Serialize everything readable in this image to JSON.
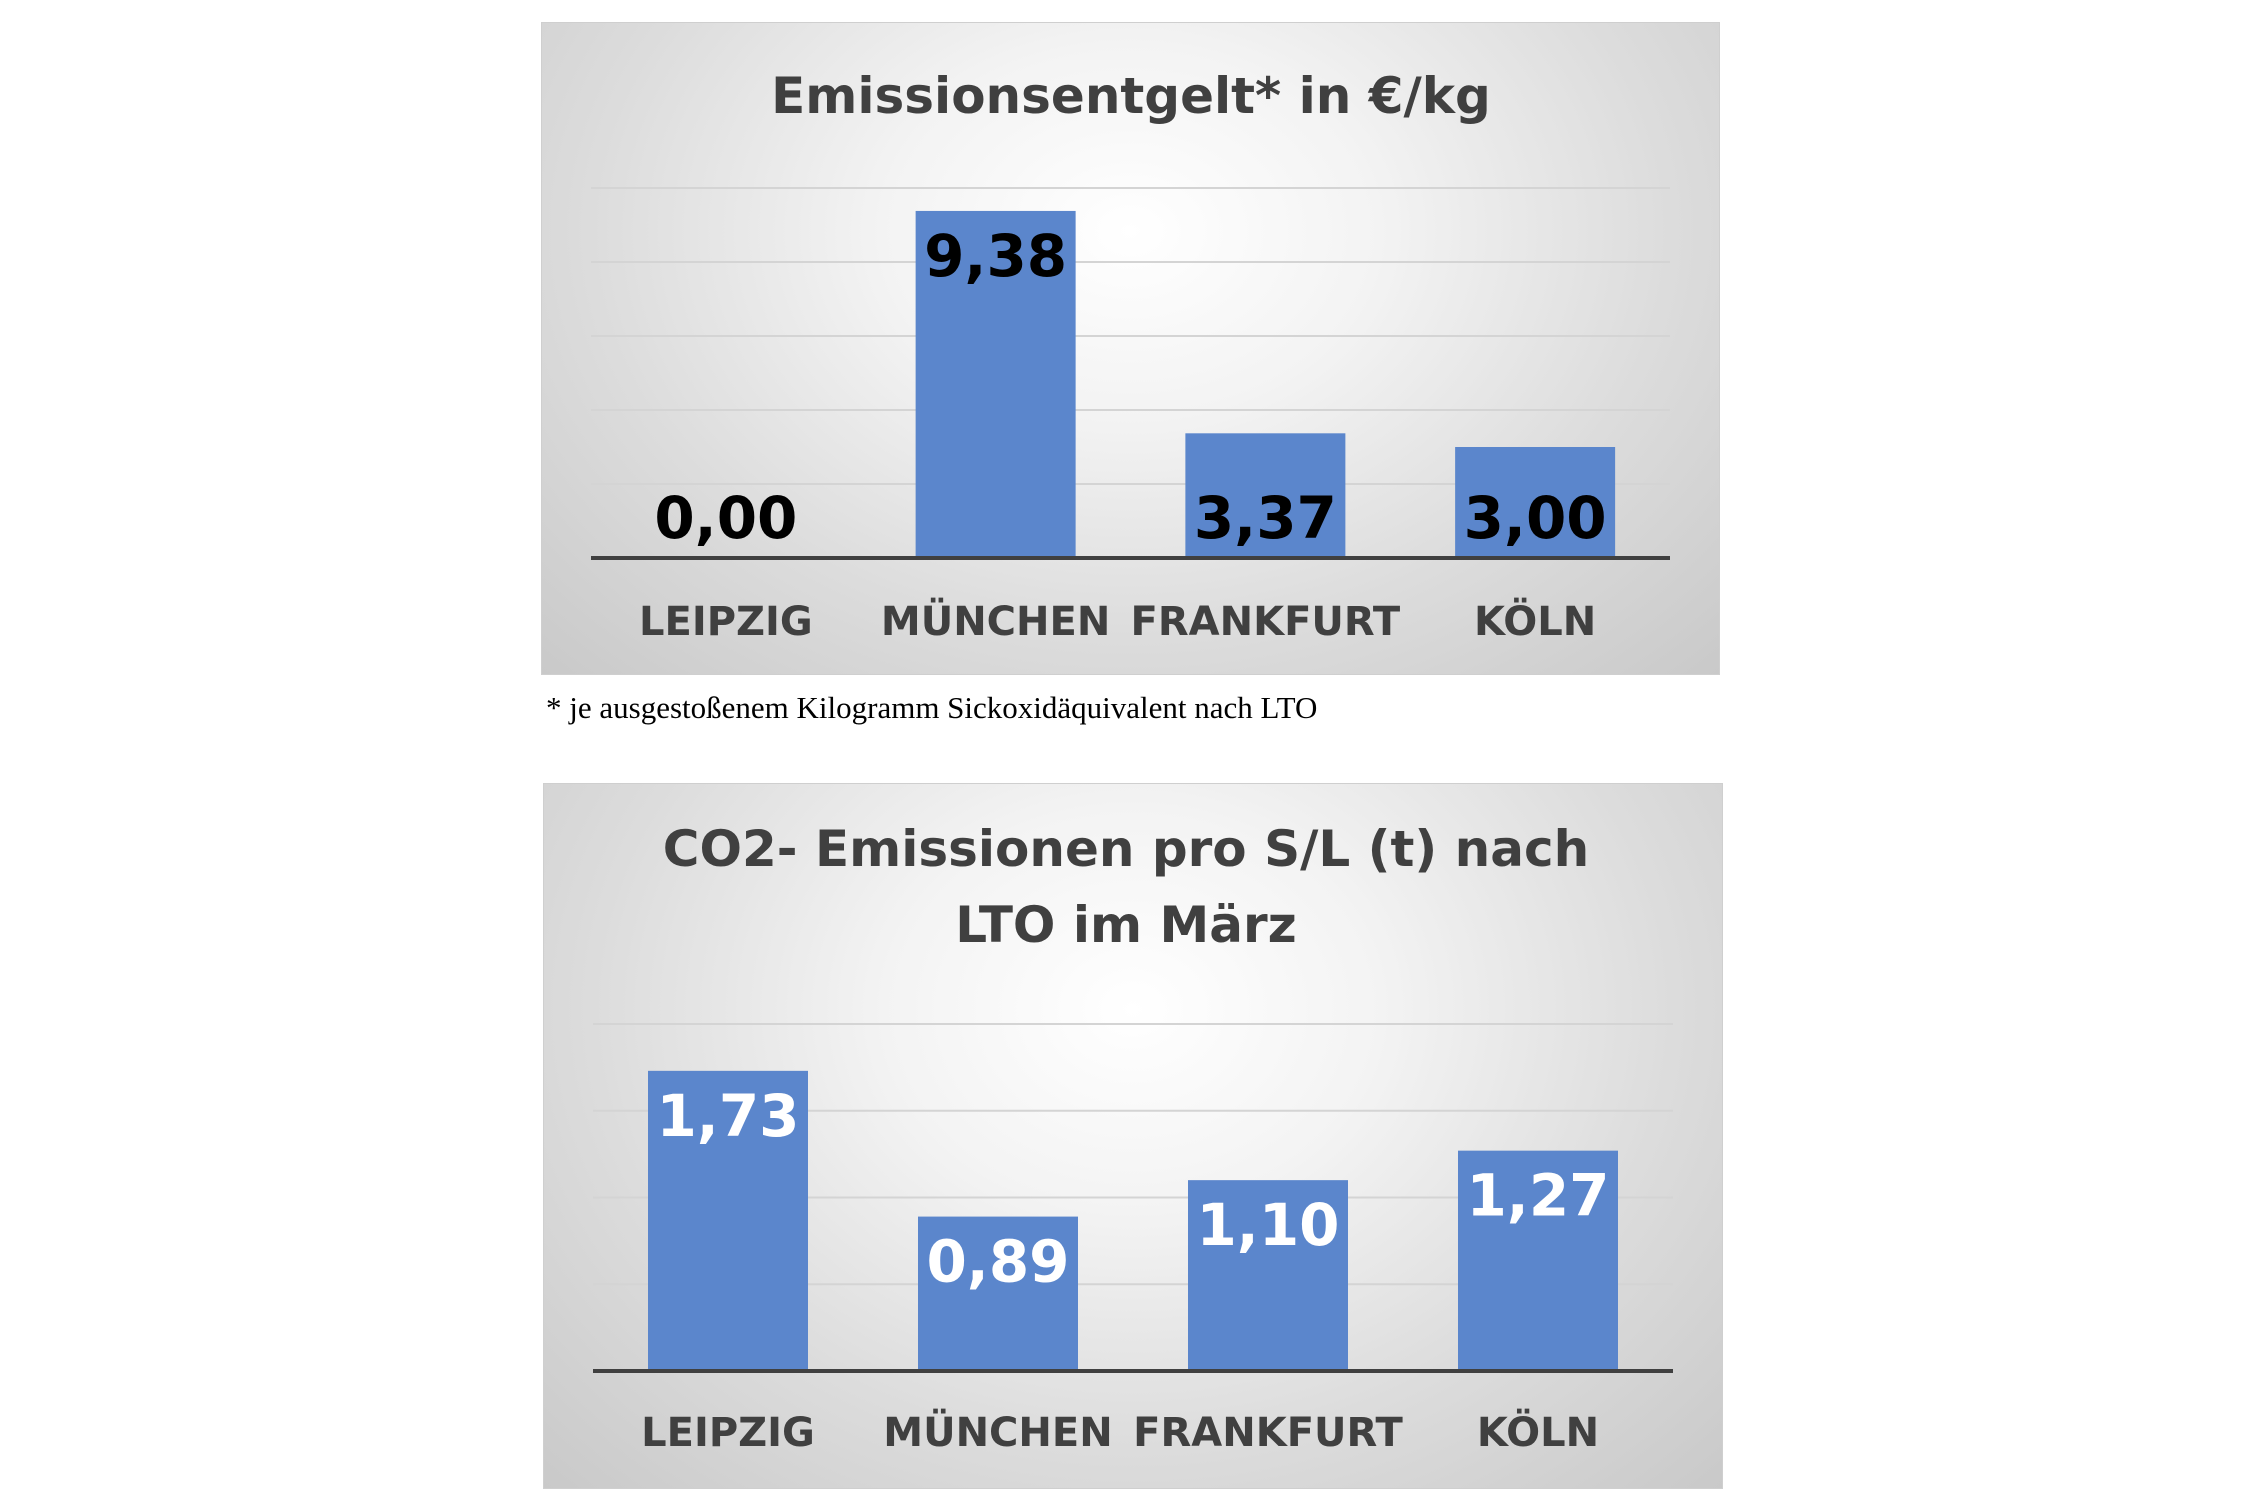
{
  "chart_data": [
    {
      "type": "bar",
      "title": "Emissionsentgelt* in €/kg",
      "categories": [
        "LEIPZIG",
        "MÜNCHEN",
        "FRANKFURT",
        "KÖLN"
      ],
      "values": [
        0.0,
        9.38,
        3.37,
        3.0
      ],
      "data_labels": [
        "0,00",
        "9,38",
        "3,37",
        "3,00"
      ],
      "ylim": [
        0,
        10
      ],
      "grid": true,
      "bar_color": "#5b86cc",
      "data_label_color": "#000000",
      "footnote": "* je ausgestoßenem Kilogramm Sickoxidäquivalent nach LTO"
    },
    {
      "type": "bar",
      "title": "CO2- Emissionen pro S/L (t) nach LTO im März",
      "title_lines": [
        "CO2- Emissionen pro S/L (t) nach",
        "LTO im März"
      ],
      "categories": [
        "LEIPZIG",
        "MÜNCHEN",
        "FRANKFURT",
        "KÖLN"
      ],
      "values": [
        1.73,
        0.89,
        1.1,
        1.27
      ],
      "data_labels": [
        "1,73",
        "0,89",
        "1,10",
        "1,27"
      ],
      "ylim": [
        0,
        2
      ],
      "grid": true,
      "bar_color": "#5b86cc",
      "data_label_color": "#ffffff"
    }
  ]
}
